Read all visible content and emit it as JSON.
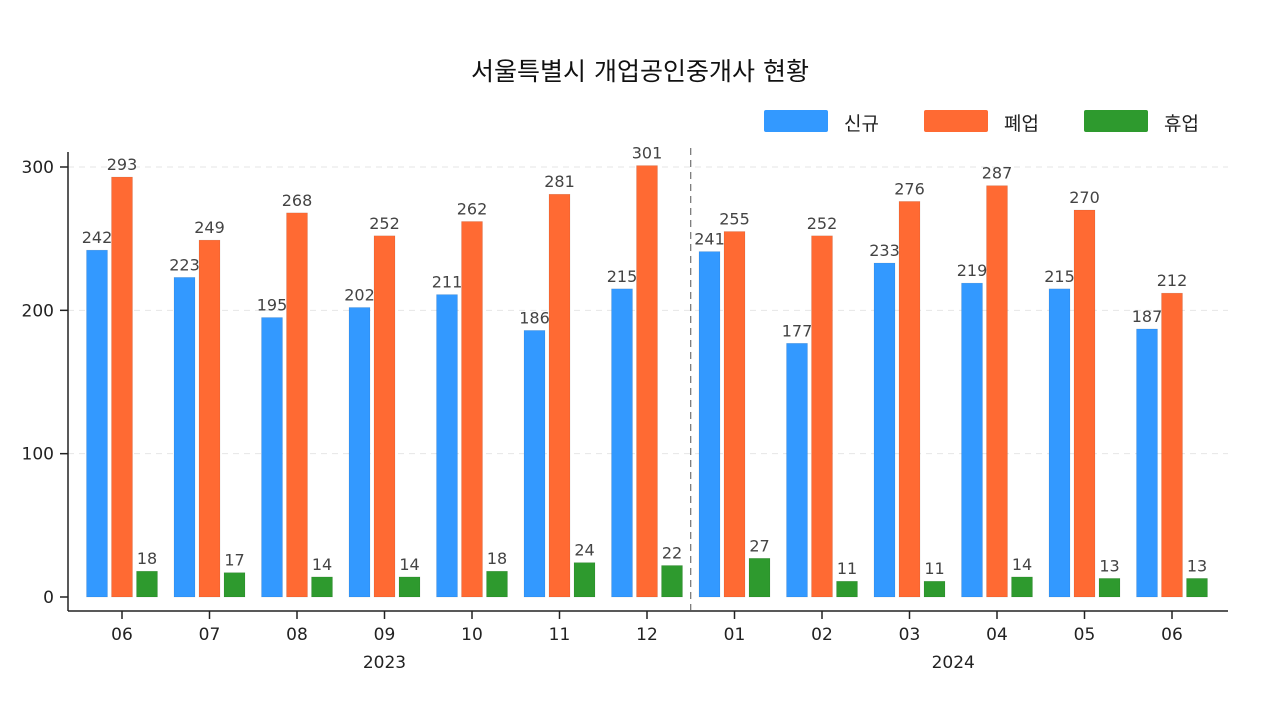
{
  "chart_data": {
    "type": "bar",
    "title": "서울특별시 개업공인중개사 현황",
    "categories": [
      "06",
      "07",
      "08",
      "09",
      "10",
      "11",
      "12",
      "01",
      "02",
      "03",
      "04",
      "05",
      "06"
    ],
    "groups": [
      {
        "label": "2023",
        "count": 7
      },
      {
        "label": "2024",
        "count": 6
      }
    ],
    "series": [
      {
        "name": "신규",
        "color": "#3399ff",
        "values": [
          242,
          223,
          195,
          202,
          211,
          186,
          215,
          241,
          177,
          233,
          219,
          215,
          187
        ]
      },
      {
        "name": "폐업",
        "color": "#ff6a33",
        "values": [
          293,
          249,
          268,
          252,
          262,
          281,
          301,
          255,
          252,
          276,
          287,
          270,
          212
        ]
      },
      {
        "name": "휴업",
        "color": "#2e9a2e",
        "values": [
          18,
          17,
          14,
          14,
          18,
          24,
          22,
          27,
          11,
          11,
          14,
          13,
          13
        ]
      }
    ],
    "ylim": [
      0,
      300
    ],
    "yticks": [
      0,
      100,
      200,
      300
    ],
    "xlabel": "",
    "ylabel": "",
    "grid": true,
    "legend_position": "top-right",
    "separator_after_index": 6
  }
}
